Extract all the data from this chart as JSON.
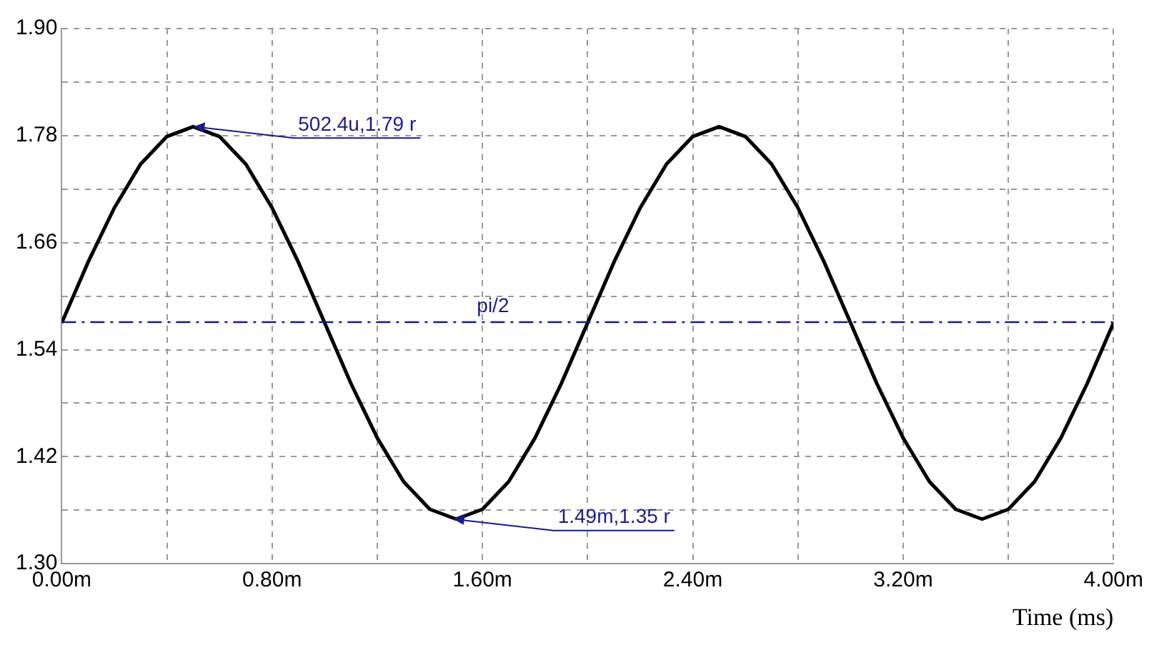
{
  "chart_data": {
    "type": "line",
    "xlabel": "Time (ms)",
    "x": [
      0,
      0.1,
      0.2,
      0.3,
      0.4,
      0.5,
      0.6,
      0.7,
      0.8,
      0.9,
      1.0,
      1.1,
      1.2,
      1.3,
      1.4,
      1.5,
      1.6,
      1.7,
      1.8,
      1.9,
      2.0,
      2.1,
      2.2,
      2.3,
      2.4,
      2.5,
      2.6,
      2.7,
      2.8,
      2.9,
      3.0,
      3.1,
      3.2,
      3.3,
      3.4,
      3.5,
      3.6,
      3.7,
      3.8,
      3.9,
      4.0
    ],
    "series": [
      {
        "color": "#000000",
        "values": [
          1.57,
          1.638,
          1.699,
          1.748,
          1.779,
          1.79,
          1.779,
          1.748,
          1.699,
          1.638,
          1.57,
          1.502,
          1.441,
          1.392,
          1.361,
          1.35,
          1.361,
          1.392,
          1.441,
          1.502,
          1.57,
          1.638,
          1.699,
          1.748,
          1.779,
          1.79,
          1.779,
          1.748,
          1.699,
          1.638,
          1.57,
          1.502,
          1.441,
          1.392,
          1.361,
          1.35,
          1.361,
          1.392,
          1.441,
          1.502,
          1.57
        ]
      }
    ],
    "xlim": [
      0,
      4
    ],
    "xticks": [
      {
        "value": 0,
        "label": "0.00m"
      },
      {
        "value": 0.4,
        "label": null
      },
      {
        "value": 0.8,
        "label": "0.80m"
      },
      {
        "value": 1.2,
        "label": null
      },
      {
        "value": 1.6,
        "label": "1.60m"
      },
      {
        "value": 2.0,
        "label": null
      },
      {
        "value": 2.4,
        "label": "2.40m"
      },
      {
        "value": 2.8,
        "label": null
      },
      {
        "value": 3.2,
        "label": "3.20m"
      },
      {
        "value": 3.6,
        "label": null
      },
      {
        "value": 4.0,
        "label": "4.00m"
      }
    ],
    "ylim": [
      1.3,
      1.9
    ],
    "yticks": [
      {
        "value": 1.3,
        "label": "1.30"
      },
      {
        "value": 1.36,
        "label": null
      },
      {
        "value": 1.42,
        "label": "1.42"
      },
      {
        "value": 1.48,
        "label": null
      },
      {
        "value": 1.54,
        "label": "1.54"
      },
      {
        "value": 1.6,
        "label": null
      },
      {
        "value": 1.66,
        "label": "1.66"
      },
      {
        "value": 1.72,
        "label": null
      },
      {
        "value": 1.78,
        "label": "1.78"
      },
      {
        "value": 1.84,
        "label": null
      },
      {
        "value": 1.9,
        "label": "1.90"
      }
    ],
    "ref_lines": [
      {
        "axis": "y",
        "value": 1.5708,
        "label": "pi/2",
        "color": "#1a1a8c",
        "line_style": "dashed"
      }
    ],
    "annotations": [
      {
        "text": "502.4u,1.79 r",
        "x": 0.5024,
        "y": 1.79
      },
      {
        "text": "1.49m,1.35 r",
        "x": 1.49,
        "y": 1.35
      }
    ],
    "grid": true,
    "legend": false,
    "marker": "none",
    "line_style": "solid"
  }
}
